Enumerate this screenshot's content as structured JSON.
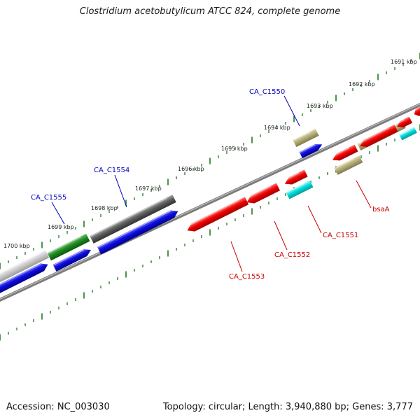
{
  "header": {
    "title": "Clostridium acetobutylicum ATCC 824, complete genome"
  },
  "footer": {
    "accession": "Accession: NC_003030",
    "topology": "Topology: circular; Length: 3,940,880 bp; Genes: 3,777"
  },
  "scale": {
    "labels": [
      "1691 kbp",
      "1692 kbp",
      "1693 kbp",
      "1694 kbp",
      "1695 kbp",
      "1696 kbp",
      "1697 kbp",
      "1698 kbp",
      "1699 kbp",
      "1700 kbp"
    ]
  },
  "genes": {
    "upper_labels": [
      "CA_C1550",
      "CA_C1554",
      "CA_C1555"
    ],
    "lower_labels": [
      "bsaA",
      "CA_C1551",
      "CA_C1552",
      "CA_C1553"
    ]
  },
  "colors": {
    "red": "#e80000",
    "blue": "#0a0ad6",
    "green": "#1f8a1f",
    "dark_gray": "#5a5a5a",
    "light_gray": "#c8c8c8",
    "khaki": "#b3ad78",
    "cyan": "#00dada",
    "tick_green": "#1e7b1e",
    "backbone": "#7c7c7c"
  }
}
